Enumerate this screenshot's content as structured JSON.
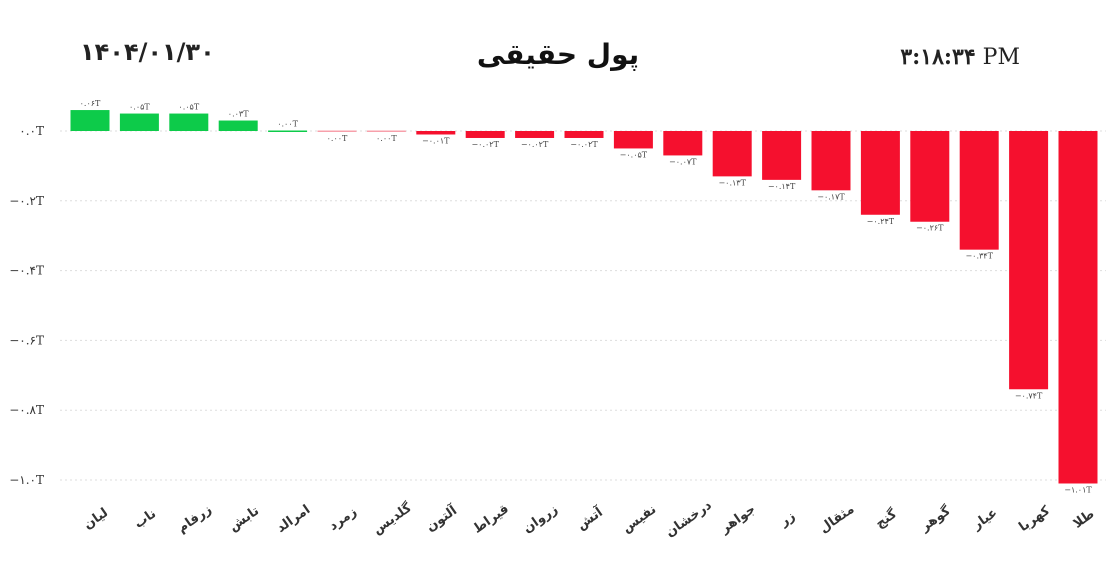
{
  "header": {
    "date": "۱۴۰۴/۰۱/۳۰",
    "title": "پول حقیقی",
    "time": "۳:۱۸:۳۴",
    "ampm": "PM"
  },
  "colors": {
    "positive": "#0dcb4a",
    "negative": "#f5102e",
    "grid": "#dddddd"
  },
  "chart_data": {
    "type": "bar",
    "title": "پول حقیقی",
    "categories": [
      "لیان",
      "ناب",
      "زرفام",
      "تابش",
      "امرالد",
      "زمرد",
      "گلدیس",
      "آلتون",
      "قیراط",
      "زروان",
      "آتش",
      "نفیس",
      "درخشان",
      "جواهر",
      "زر",
      "مثقال",
      "گنج",
      "گوهر",
      "عیار",
      "کهربا",
      "طلا"
    ],
    "values": [
      0.06,
      0.05,
      0.05,
      0.03,
      0.0,
      0.0,
      0.0,
      -0.01,
      -0.02,
      -0.02,
      -0.02,
      -0.05,
      -0.07,
      -0.13,
      -0.14,
      -0.17,
      -0.24,
      -0.26,
      -0.34,
      -0.74,
      -1.01
    ],
    "data_labels": [
      "۰.۰۶T",
      "۰.۰۵T",
      "۰.۰۵T",
      "۰.۰۳T",
      "۰.۰۰T",
      "۰.۰۰T",
      "۰.۰۰T",
      "−۰.۰۱T",
      "−۰.۰۲T",
      "−۰.۰۲T",
      "−۰.۰۲T",
      "−۰.۰۵T",
      "−۰.۰۷T",
      "−۰.۱۳T",
      "−۰.۱۴T",
      "−۰.۱۷T",
      "−۰.۲۴T",
      "−۰.۲۶T",
      "−۰.۳۴T",
      "−۰.۷۴T",
      "−۱.۰۱T"
    ],
    "y_ticks": [
      0,
      -0.2,
      -0.4,
      -0.6,
      -0.8,
      -1.0
    ],
    "y_tick_labels": [
      "۰.۰T",
      "−۰.۲T",
      "−۰.۴T",
      "−۰.۶T",
      "−۰.۸T",
      "−۱.۰T"
    ],
    "ylim": [
      -1.01,
      0.06
    ],
    "grid": true,
    "legend": "none"
  }
}
